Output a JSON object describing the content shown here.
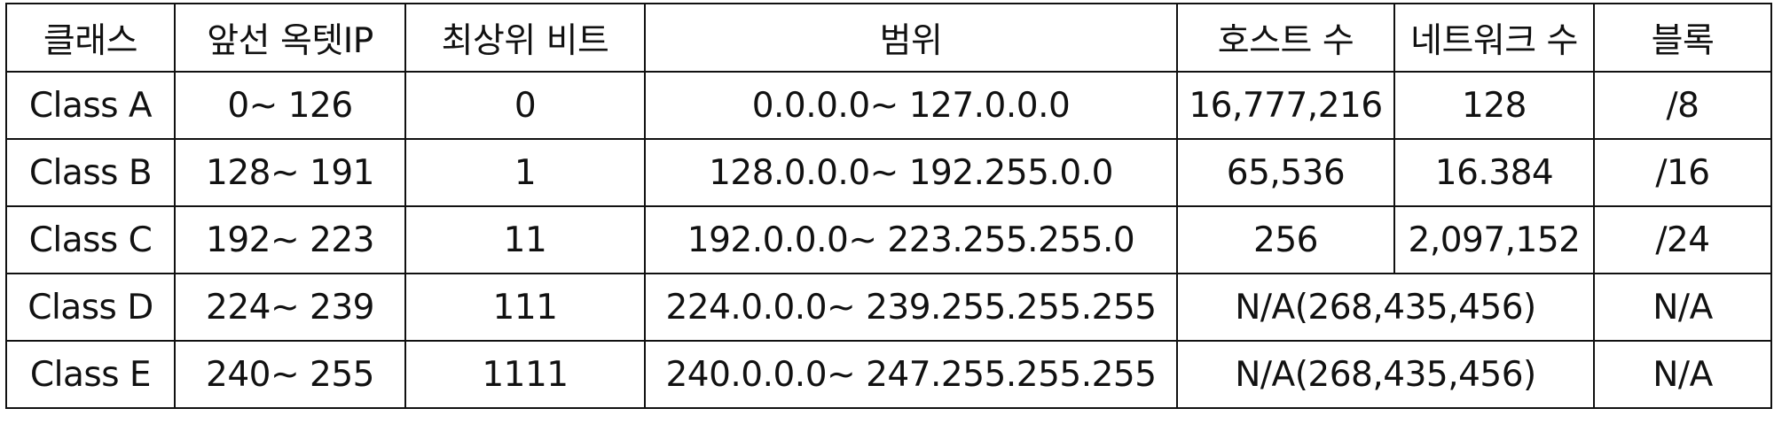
{
  "table": {
    "headers": [
      "클래스",
      "앞선 옥텟IP",
      "최상위 비트",
      "범위",
      "호스트 수",
      "네트워크 수",
      "블록"
    ],
    "rows": [
      {
        "class": "Class A",
        "first_octet": "0~ 126",
        "top_bits": "0",
        "range": "0.0.0.0~ 127.0.0.0",
        "hosts": "16,777,216",
        "networks": "128",
        "block": "/8"
      },
      {
        "class": "Class B",
        "first_octet": "128~ 191",
        "top_bits": "1",
        "range": "128.0.0.0~ 192.255.0.0",
        "hosts": "65,536",
        "networks": "16.384",
        "block": "/16"
      },
      {
        "class": "Class C",
        "first_octet": "192~ 223",
        "top_bits": "11",
        "range": "192.0.0.0~ 223.255.255.0",
        "hosts": "256",
        "networks": "2,097,152",
        "block": "/24"
      },
      {
        "class": "Class D",
        "first_octet": "224~ 239",
        "top_bits": "111",
        "range": "224.0.0.0~ 239.255.255.255",
        "hosts_networks": "N/A(268,435,456)",
        "block": "N/A"
      },
      {
        "class": "Class E",
        "first_octet": "240~ 255",
        "top_bits": "1111",
        "range": "240.0.0.0~ 247.255.255.255",
        "hosts_networks": "N/A(268,435,456)",
        "block": "N/A"
      }
    ]
  }
}
